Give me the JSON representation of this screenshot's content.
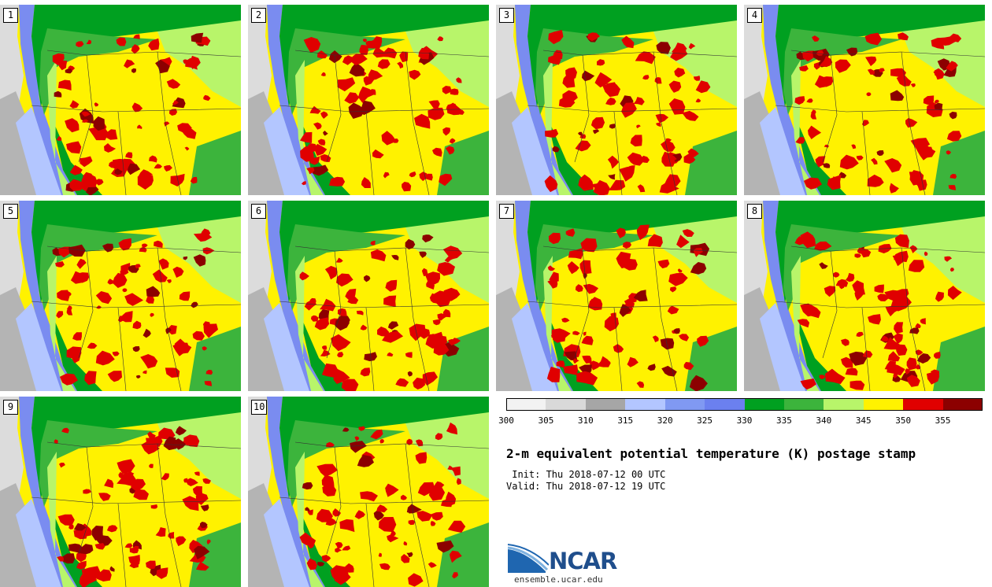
{
  "title": "2-m equivalent potential temperature (K) postage stamp",
  "init_time": " Init: Thu 2018-07-12 00 UTC",
  "valid_time": "Valid: Thu 2018-07-12 19 UTC",
  "logo": {
    "text": "NCAR",
    "url": "ensemble.ucar.edu"
  },
  "members": [
    "1",
    "2",
    "3",
    "4",
    "5",
    "6",
    "7",
    "8",
    "9",
    "10"
  ],
  "colorbar": {
    "unit": "K",
    "ticks": [
      "300",
      "305",
      "310",
      "315",
      "320",
      "325",
      "330",
      "335",
      "340",
      "345",
      "350",
      "355"
    ],
    "colors": [
      "#f2f2f2",
      "#d9d9d9",
      "#a6a6a6",
      "#b3c6ff",
      "#8099f2",
      "#6b80ef",
      "#00a020",
      "#3cb43c",
      "#b8f56a",
      "#fff200",
      "#e00000",
      "#8c0000"
    ]
  },
  "map_colors": {
    "ocean_far": "#b4b4b4",
    "ocean_light": "#dcdcdc",
    "coast_low": "#7a8cf0",
    "pale_blue": "#b3c6ff",
    "dark_green": "#00a020",
    "mid_green": "#3cb43c",
    "light_green": "#b8f56a",
    "yellow": "#fff200",
    "red": "#e00000",
    "dark_red": "#8c0000",
    "borders": "#333333"
  }
}
